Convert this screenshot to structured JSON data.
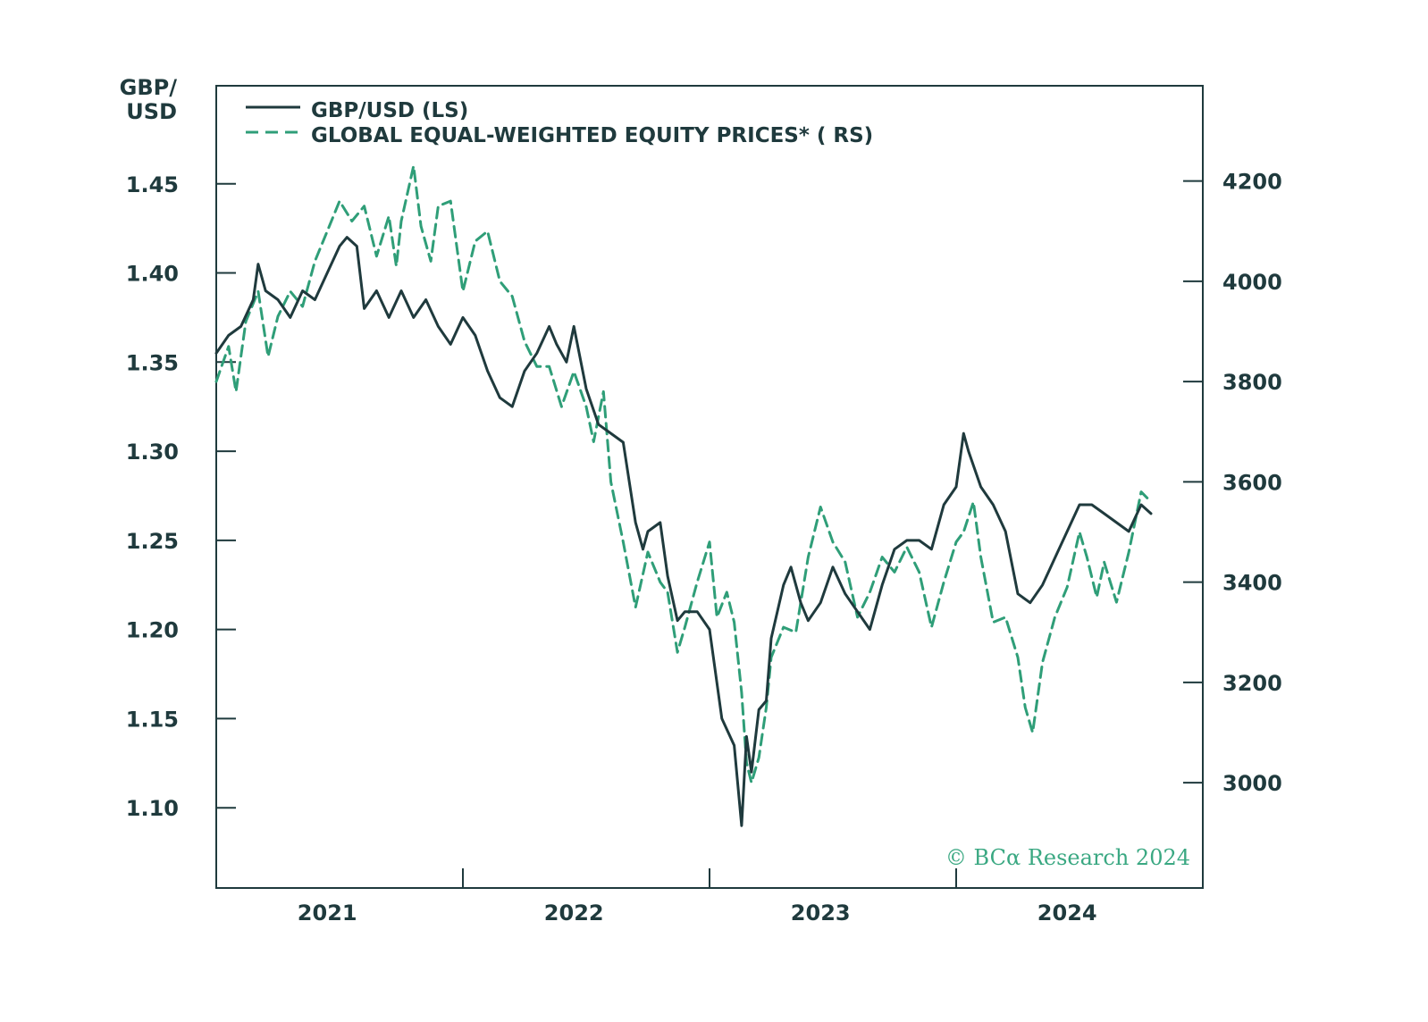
{
  "chart_data": {
    "type": "line",
    "title": "",
    "left_axis": {
      "title_line1": "GBP/",
      "title_line2": "USD",
      "ylim": [
        1.055,
        1.505
      ],
      "ticks": [
        1.45,
        1.4,
        1.35,
        1.3,
        1.25,
        1.2,
        1.15,
        1.1
      ],
      "tick_labels": [
        "1.45",
        "1.40",
        "1.35",
        "1.30",
        "1.25",
        "1.20",
        "1.15",
        "1.10"
      ]
    },
    "right_axis": {
      "ylim": [
        2790,
        4390
      ],
      "ticks": [
        4200,
        4000,
        3800,
        3600,
        3400,
        3200,
        3000
      ],
      "tick_labels": [
        "4200",
        "4000",
        "3800",
        "3600",
        "3400",
        "3200",
        "3000"
      ]
    },
    "x_axis": {
      "xlim": [
        2020.55,
        2024.55
      ],
      "year_labels": [
        "2021",
        "2022",
        "2023",
        "2024"
      ],
      "year_label_positions": [
        2021.0,
        2022.0,
        2023.0,
        2024.0
      ],
      "tick_positions": [
        2021.55,
        2022.55,
        2023.55
      ]
    },
    "legend": {
      "placement": "top-left",
      "entries": [
        {
          "label": "GBP/USD (LS)",
          "style": "solid"
        },
        {
          "label": "GLOBAL EQUAL-WEIGHTED EQUITY PRICES* ( RS)",
          "style": "dashed"
        }
      ]
    },
    "series": [
      {
        "name": "GBP/USD (LS)",
        "axis": "left",
        "color": "#1f3a3d",
        "style": "solid",
        "points": [
          [
            2020.55,
            1.355
          ],
          [
            2020.6,
            1.365
          ],
          [
            2020.65,
            1.37
          ],
          [
            2020.7,
            1.385
          ],
          [
            2020.72,
            1.405
          ],
          [
            2020.75,
            1.39
          ],
          [
            2020.8,
            1.385
          ],
          [
            2020.85,
            1.375
          ],
          [
            2020.9,
            1.39
          ],
          [
            2020.95,
            1.385
          ],
          [
            2021.0,
            1.4
          ],
          [
            2021.05,
            1.415
          ],
          [
            2021.08,
            1.42
          ],
          [
            2021.12,
            1.415
          ],
          [
            2021.15,
            1.38
          ],
          [
            2021.2,
            1.39
          ],
          [
            2021.25,
            1.375
          ],
          [
            2021.3,
            1.39
          ],
          [
            2021.35,
            1.375
          ],
          [
            2021.4,
            1.385
          ],
          [
            2021.45,
            1.37
          ],
          [
            2021.5,
            1.36
          ],
          [
            2021.55,
            1.375
          ],
          [
            2021.6,
            1.365
          ],
          [
            2021.65,
            1.345
          ],
          [
            2021.7,
            1.33
          ],
          [
            2021.75,
            1.325
          ],
          [
            2021.8,
            1.345
          ],
          [
            2021.85,
            1.355
          ],
          [
            2021.9,
            1.37
          ],
          [
            2021.93,
            1.36
          ],
          [
            2021.97,
            1.35
          ],
          [
            2022.0,
            1.37
          ],
          [
            2022.05,
            1.335
          ],
          [
            2022.1,
            1.315
          ],
          [
            2022.15,
            1.31
          ],
          [
            2022.2,
            1.305
          ],
          [
            2022.25,
            1.26
          ],
          [
            2022.28,
            1.245
          ],
          [
            2022.3,
            1.255
          ],
          [
            2022.35,
            1.26
          ],
          [
            2022.38,
            1.23
          ],
          [
            2022.42,
            1.205
          ],
          [
            2022.45,
            1.21
          ],
          [
            2022.5,
            1.21
          ],
          [
            2022.55,
            1.2
          ],
          [
            2022.6,
            1.15
          ],
          [
            2022.65,
            1.135
          ],
          [
            2022.68,
            1.09
          ],
          [
            2022.7,
            1.14
          ],
          [
            2022.72,
            1.12
          ],
          [
            2022.75,
            1.155
          ],
          [
            2022.78,
            1.16
          ],
          [
            2022.8,
            1.195
          ],
          [
            2022.85,
            1.225
          ],
          [
            2022.88,
            1.235
          ],
          [
            2022.92,
            1.215
          ],
          [
            2022.95,
            1.205
          ],
          [
            2023.0,
            1.215
          ],
          [
            2023.05,
            1.235
          ],
          [
            2023.1,
            1.22
          ],
          [
            2023.15,
            1.21
          ],
          [
            2023.2,
            1.2
          ],
          [
            2023.25,
            1.225
          ],
          [
            2023.3,
            1.245
          ],
          [
            2023.35,
            1.25
          ],
          [
            2023.4,
            1.25
          ],
          [
            2023.45,
            1.245
          ],
          [
            2023.5,
            1.27
          ],
          [
            2023.55,
            1.28
          ],
          [
            2023.58,
            1.31
          ],
          [
            2023.6,
            1.3
          ],
          [
            2023.65,
            1.28
          ],
          [
            2023.7,
            1.27
          ],
          [
            2023.75,
            1.255
          ],
          [
            2023.8,
            1.22
          ],
          [
            2023.85,
            1.215
          ],
          [
            2023.9,
            1.225
          ],
          [
            2023.95,
            1.24
          ],
          [
            2024.0,
            1.255
          ],
          [
            2024.05,
            1.27
          ],
          [
            2024.1,
            1.27
          ],
          [
            2024.15,
            1.265
          ],
          [
            2024.2,
            1.26
          ],
          [
            2024.25,
            1.255
          ],
          [
            2024.3,
            1.27
          ],
          [
            2024.34,
            1.265
          ]
        ]
      },
      {
        "name": "GLOBAL EQUAL-WEIGHTED EQUITY PRICES* ( RS)",
        "axis": "right",
        "color": "#2f9e78",
        "style": "dashed",
        "points": [
          [
            2020.55,
            3800
          ],
          [
            2020.6,
            3870
          ],
          [
            2020.63,
            3780
          ],
          [
            2020.67,
            3920
          ],
          [
            2020.72,
            3980
          ],
          [
            2020.76,
            3850
          ],
          [
            2020.8,
            3930
          ],
          [
            2020.85,
            3980
          ],
          [
            2020.9,
            3950
          ],
          [
            2020.95,
            4040
          ],
          [
            2021.0,
            4100
          ],
          [
            2021.05,
            4160
          ],
          [
            2021.1,
            4120
          ],
          [
            2021.15,
            4150
          ],
          [
            2021.2,
            4050
          ],
          [
            2021.25,
            4130
          ],
          [
            2021.28,
            4030
          ],
          [
            2021.3,
            4120
          ],
          [
            2021.35,
            4230
          ],
          [
            2021.38,
            4110
          ],
          [
            2021.42,
            4040
          ],
          [
            2021.45,
            4150
          ],
          [
            2021.5,
            4160
          ],
          [
            2021.55,
            3980
          ],
          [
            2021.6,
            4080
          ],
          [
            2021.65,
            4100
          ],
          [
            2021.7,
            4000
          ],
          [
            2021.75,
            3970
          ],
          [
            2021.8,
            3880
          ],
          [
            2021.85,
            3830
          ],
          [
            2021.9,
            3830
          ],
          [
            2021.95,
            3750
          ],
          [
            2022.0,
            3820
          ],
          [
            2022.05,
            3750
          ],
          [
            2022.08,
            3680
          ],
          [
            2022.12,
            3780
          ],
          [
            2022.15,
            3600
          ],
          [
            2022.2,
            3480
          ],
          [
            2022.25,
            3350
          ],
          [
            2022.3,
            3460
          ],
          [
            2022.35,
            3400
          ],
          [
            2022.38,
            3380
          ],
          [
            2022.42,
            3260
          ],
          [
            2022.45,
            3310
          ],
          [
            2022.5,
            3400
          ],
          [
            2022.55,
            3480
          ],
          [
            2022.58,
            3330
          ],
          [
            2022.62,
            3380
          ],
          [
            2022.65,
            3320
          ],
          [
            2022.68,
            3180
          ],
          [
            2022.7,
            3040
          ],
          [
            2022.72,
            3000
          ],
          [
            2022.75,
            3050
          ],
          [
            2022.78,
            3150
          ],
          [
            2022.8,
            3250
          ],
          [
            2022.85,
            3310
          ],
          [
            2022.9,
            3300
          ],
          [
            2022.95,
            3450
          ],
          [
            2023.0,
            3550
          ],
          [
            2023.05,
            3480
          ],
          [
            2023.1,
            3440
          ],
          [
            2023.15,
            3330
          ],
          [
            2023.2,
            3380
          ],
          [
            2023.25,
            3450
          ],
          [
            2023.3,
            3420
          ],
          [
            2023.35,
            3470
          ],
          [
            2023.4,
            3420
          ],
          [
            2023.45,
            3310
          ],
          [
            2023.5,
            3400
          ],
          [
            2023.55,
            3480
          ],
          [
            2023.58,
            3500
          ],
          [
            2023.62,
            3560
          ],
          [
            2023.65,
            3450
          ],
          [
            2023.7,
            3320
          ],
          [
            2023.75,
            3330
          ],
          [
            2023.8,
            3250
          ],
          [
            2023.83,
            3150
          ],
          [
            2023.86,
            3100
          ],
          [
            2023.9,
            3240
          ],
          [
            2023.95,
            3330
          ],
          [
            2024.0,
            3390
          ],
          [
            2024.05,
            3500
          ],
          [
            2024.08,
            3450
          ],
          [
            2024.12,
            3370
          ],
          [
            2024.15,
            3440
          ],
          [
            2024.2,
            3360
          ],
          [
            2024.25,
            3460
          ],
          [
            2024.3,
            3580
          ],
          [
            2024.34,
            3560
          ]
        ]
      }
    ],
    "grid": false,
    "credit": "© BCα Research 2024"
  }
}
